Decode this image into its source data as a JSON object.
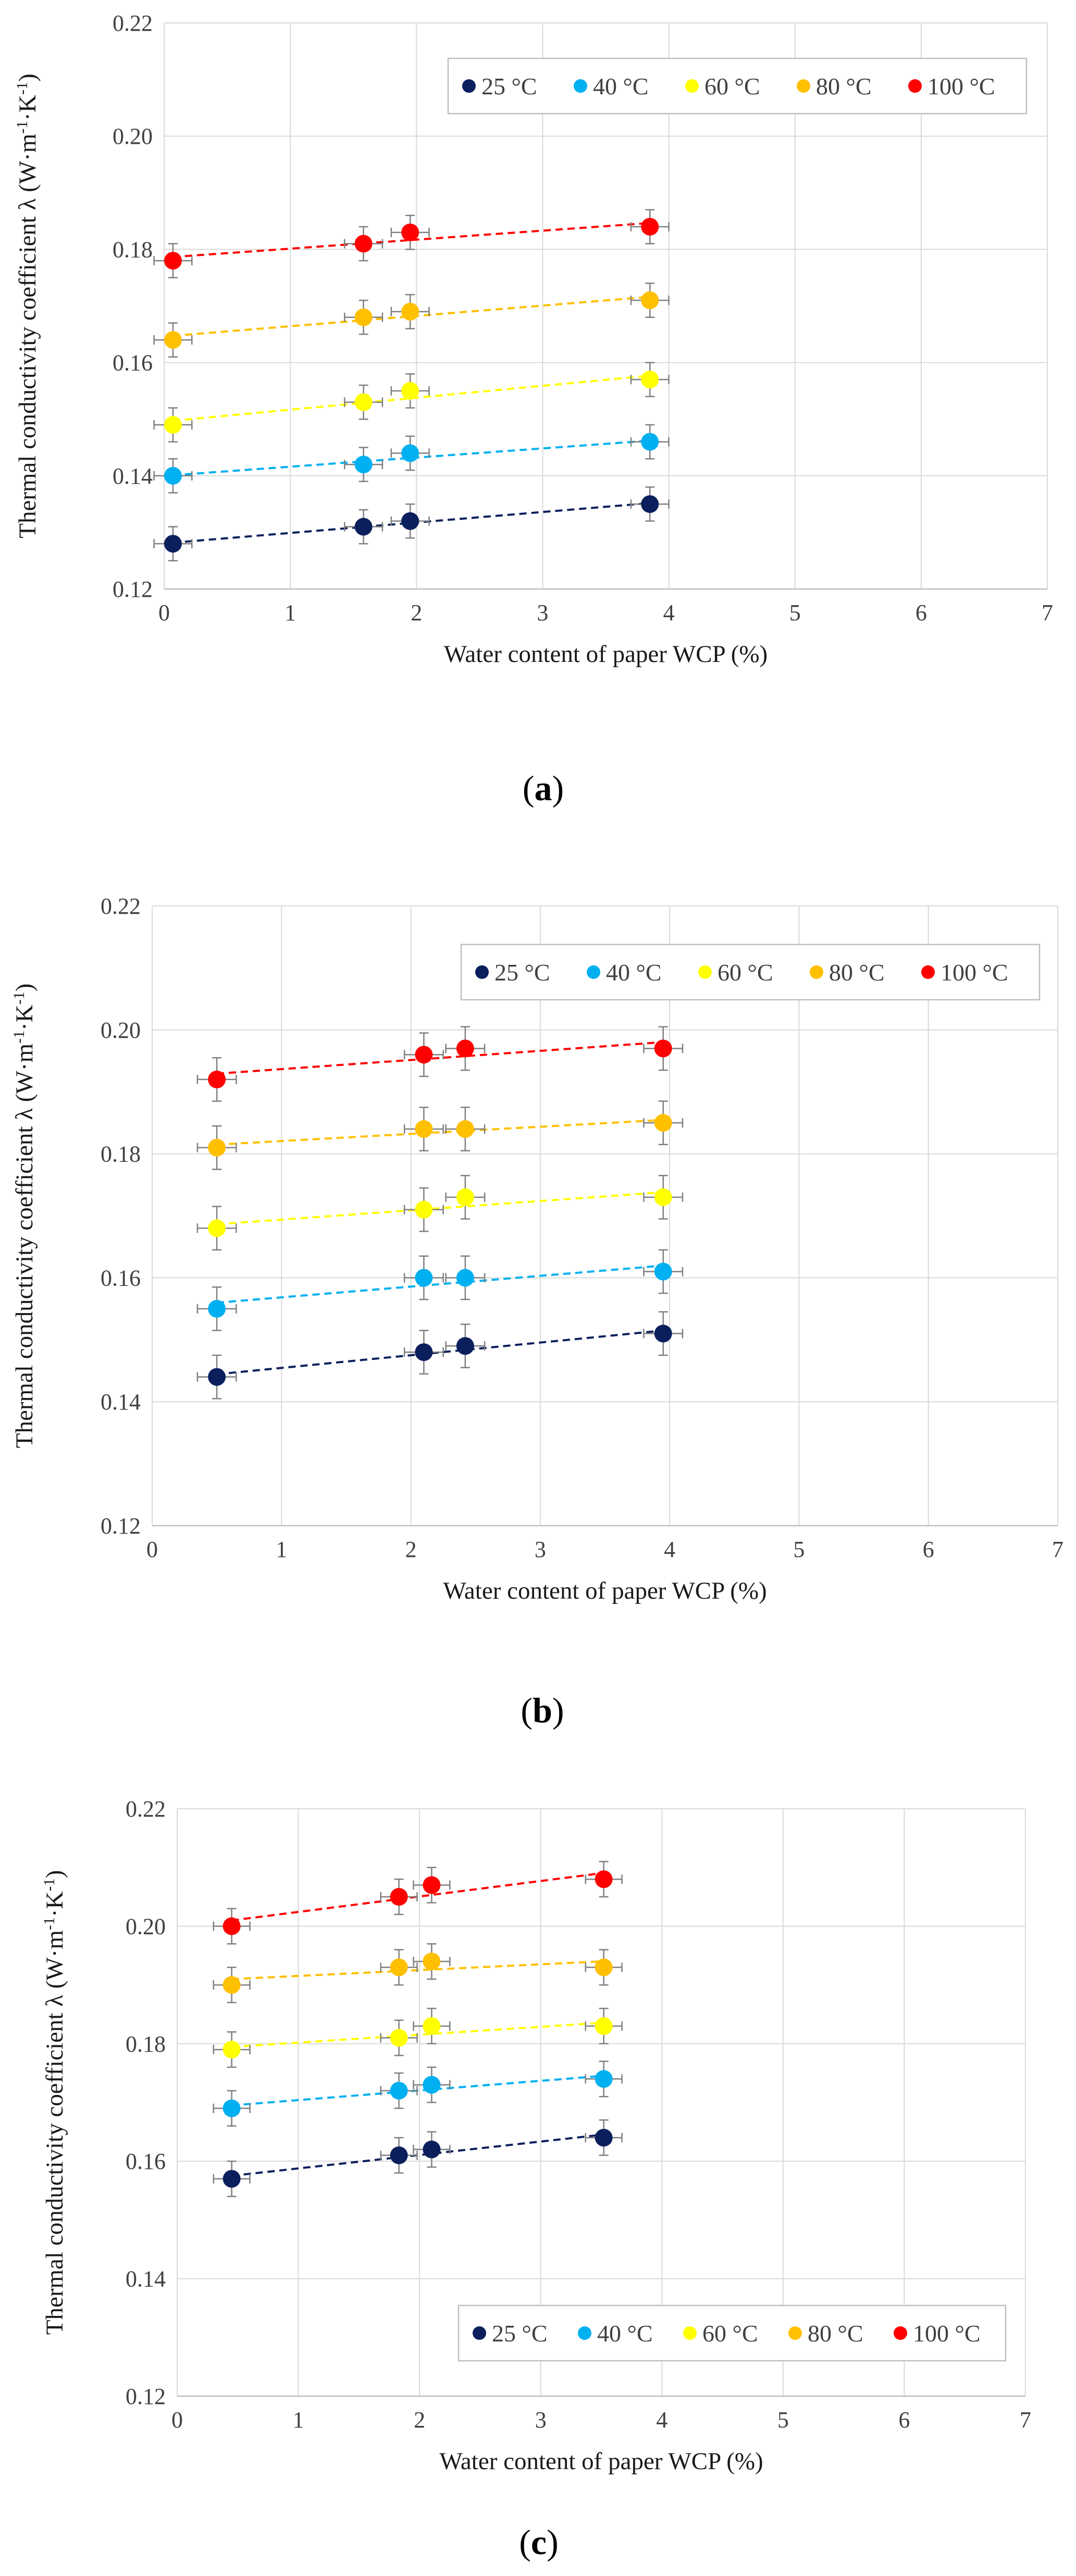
{
  "chart_data": [
    {
      "type": "scatter",
      "panel": "a",
      "caption": "(a)",
      "xlabel": "Water content of paper WCP (%)",
      "ylabel": "Thermal conductivity coefficient λ (W·m-1·K-1)",
      "xlim": [
        0,
        7
      ],
      "ylim": [
        0.12,
        0.22
      ],
      "xticks": [
        0,
        1,
        2,
        3,
        4,
        5,
        6,
        7
      ],
      "yticks": [
        0.12,
        0.14,
        0.16,
        0.18,
        0.2,
        0.22
      ],
      "grid": true,
      "legend_position": "top-right",
      "x": [
        0.07,
        1.58,
        1.95,
        3.85
      ],
      "x_error": 0.15,
      "y_error": 0.003,
      "trendline": "linear, dashed",
      "series": [
        {
          "name": "25 °C",
          "color": "#0a1f5c",
          "values": [
            0.128,
            0.131,
            0.132,
            0.135
          ]
        },
        {
          "name": "40 °C",
          "color": "#00b0f0",
          "values": [
            0.14,
            0.142,
            0.144,
            0.146
          ]
        },
        {
          "name": "60 °C",
          "color": "#ffff00",
          "values": [
            0.149,
            0.153,
            0.155,
            0.157
          ]
        },
        {
          "name": "80 °C",
          "color": "#ffc000",
          "values": [
            0.164,
            0.168,
            0.169,
            0.171
          ]
        },
        {
          "name": "100 °C",
          "color": "#ff0000",
          "values": [
            0.178,
            0.181,
            0.183,
            0.184
          ]
        }
      ]
    },
    {
      "type": "scatter",
      "panel": "b",
      "caption": "(b)",
      "xlabel": "Water content of paper WCP (%)",
      "ylabel": "Thermal conductivity coefficient λ (W·m-1·K-1)",
      "xlim": [
        0,
        7
      ],
      "ylim": [
        0.12,
        0.22
      ],
      "xticks": [
        0,
        1,
        2,
        3,
        4,
        5,
        6,
        7
      ],
      "yticks": [
        0.12,
        0.14,
        0.16,
        0.18,
        0.2,
        0.22
      ],
      "grid": true,
      "legend_position": "top-right",
      "x": [
        0.5,
        2.1,
        2.42,
        3.95
      ],
      "x_error": 0.15,
      "y_error": 0.0035,
      "trendline": "linear, dashed",
      "series": [
        {
          "name": "25 °C",
          "color": "#0a1f5c",
          "values": [
            0.144,
            0.148,
            0.149,
            0.151
          ]
        },
        {
          "name": "40 °C",
          "color": "#00b0f0",
          "values": [
            0.155,
            0.16,
            0.16,
            0.161
          ]
        },
        {
          "name": "60 °C",
          "color": "#ffff00",
          "values": [
            0.168,
            0.171,
            0.173,
            0.173
          ]
        },
        {
          "name": "80 °C",
          "color": "#ffc000",
          "values": [
            0.181,
            0.184,
            0.184,
            0.185
          ]
        },
        {
          "name": "100 °C",
          "color": "#ff0000",
          "values": [
            0.192,
            0.196,
            0.197,
            0.197
          ]
        }
      ]
    },
    {
      "type": "scatter",
      "panel": "c",
      "caption": "(c)",
      "xlabel": "Water content of paper WCP (%)",
      "ylabel": "Thermal conductivity coefficient λ (W·m-1·K-1)",
      "xlim": [
        0,
        7
      ],
      "ylim": [
        0.12,
        0.22
      ],
      "xticks": [
        0,
        1,
        2,
        3,
        4,
        5,
        6,
        7
      ],
      "yticks": [
        0.12,
        0.14,
        0.16,
        0.18,
        0.2,
        0.22
      ],
      "grid": true,
      "legend_position": "bottom-right",
      "x": [
        0.45,
        1.83,
        2.1,
        3.52
      ],
      "x_error": 0.15,
      "y_error": 0.003,
      "trendline": "linear, dashed",
      "series": [
        {
          "name": "25 °C",
          "color": "#0a1f5c",
          "values": [
            0.157,
            0.161,
            0.162,
            0.164
          ]
        },
        {
          "name": "40 °C",
          "color": "#00b0f0",
          "values": [
            0.169,
            0.172,
            0.173,
            0.174
          ]
        },
        {
          "name": "60 °C",
          "color": "#ffff00",
          "values": [
            0.179,
            0.181,
            0.183,
            0.183
          ]
        },
        {
          "name": "80 °C",
          "color": "#ffc000",
          "values": [
            0.19,
            0.193,
            0.194,
            0.193
          ]
        },
        {
          "name": "100 °C",
          "color": "#ff0000",
          "values": [
            0.2,
            0.205,
            0.207,
            0.208
          ]
        }
      ]
    }
  ],
  "colors": {
    "grid": "#d9d9d9",
    "error_bar": "#7f7f7f",
    "legend_border": "#bfbfbf"
  }
}
